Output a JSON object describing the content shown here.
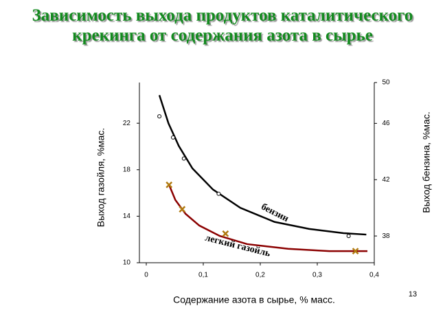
{
  "chart_data": {
    "type": "line",
    "title": "Зависимость выхода продуктов каталитического крекинга от содержания азота в сырье",
    "x_label": "Содержание азота в сырье, % масс.",
    "y_label": "Выход газойля, %мас.",
    "y2_label": "Выход бензина, %мас.",
    "page_number": "13",
    "xlim": [
      0,
      0.4
    ],
    "xticks": [
      {
        "value": 0,
        "label": "0"
      },
      {
        "value": 0.1,
        "label": "0,1"
      },
      {
        "value": 0.2,
        "label": "0,2"
      },
      {
        "value": 0.3,
        "label": "0,3"
      },
      {
        "value": 0.4,
        "label": "0,4"
      }
    ],
    "ylim": [
      10,
      25.5
    ],
    "yticks": [
      10,
      14,
      18,
      22
    ],
    "y2lim": [
      36.1,
      48.9
    ],
    "y2ticks": [
      38,
      42,
      46,
      50
    ],
    "series": [
      {
        "name": "бензин",
        "axis": "y2",
        "color": "#000000",
        "marker": "circle",
        "x": [
          0.023,
          0.047,
          0.066,
          0.127,
          0.355
        ],
        "values": [
          46.5,
          45.0,
          43.5,
          41.0,
          38.0
        ],
        "curve_x": [
          0.023,
          0.039,
          0.057,
          0.081,
          0.117,
          0.165,
          0.225,
          0.286,
          0.346,
          0.386
        ],
        "curve_values": [
          48.0,
          46.0,
          44.4,
          42.8,
          41.3,
          40.0,
          39.0,
          38.5,
          38.2,
          38.1
        ]
      },
      {
        "name": "легкий газойль",
        "axis": "y",
        "color": "#8b0000",
        "marker": "cross",
        "x": [
          0.04,
          0.063,
          0.139,
          0.367
        ],
        "values": [
          16.7,
          14.6,
          12.5,
          11.0
        ],
        "curve_x": [
          0.04,
          0.051,
          0.069,
          0.093,
          0.129,
          0.177,
          0.249,
          0.321,
          0.388
        ],
        "curve_values": [
          16.7,
          15.4,
          14.2,
          13.2,
          12.3,
          11.6,
          11.2,
          11.0,
          11.0
        ]
      }
    ]
  }
}
